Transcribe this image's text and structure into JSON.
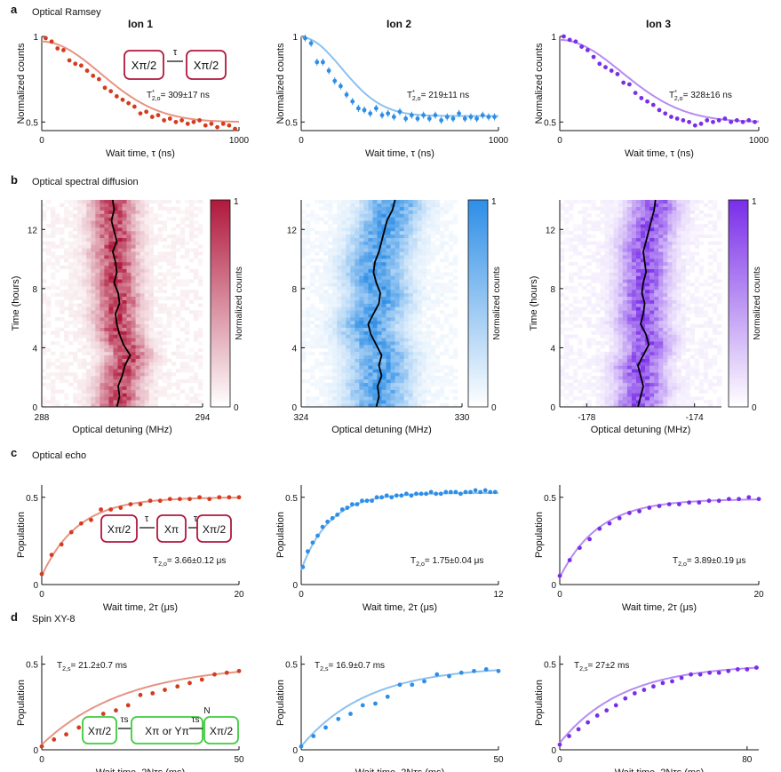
{
  "figure": {
    "colors": {
      "ion1": "#d43c1e",
      "ion2": "#2e8ee6",
      "ion3": "#7a2ee8",
      "green": "#3ecb3e",
      "crimson": "#b0183c"
    },
    "rows": [
      {
        "letter": "a",
        "title": "Optical Ramsey"
      },
      {
        "letter": "b",
        "title": "Optical spectral diffusion"
      },
      {
        "letter": "c",
        "title": "Optical echo"
      },
      {
        "letter": "d",
        "title": "Spin XY-8"
      }
    ],
    "ion_labels": [
      "Ion 1",
      "Ion 2",
      "Ion 3"
    ],
    "colorbar_label": "Normalized counts",
    "colorbar_ticks": [
      "1",
      "0"
    ],
    "insets": {
      "ramsey": {
        "pulse1": "Xπ/2",
        "pulse2": "Xπ/2",
        "delay": "τ"
      },
      "echo": {
        "pulse1": "Xπ/2",
        "pulse2": "Xπ",
        "pulse3": "Xπ/2",
        "delay1": "τ",
        "delay2": "τ"
      },
      "xy8": {
        "pulse1": "Xπ/2",
        "pulse2": "Xπ or Yπ",
        "pulse3": "Xπ/2",
        "delay1": "τs",
        "delay2": "τs",
        "repeat": "N"
      }
    }
  },
  "chart_data": [
    {
      "id": "a1",
      "type": "scatter",
      "row": "a",
      "ion": "Ion 1",
      "color": "#d43c1e",
      "xlabel": "Wait time, τ (ns)",
      "ylabel": "Normalized counts",
      "xlim": [
        0,
        1000
      ],
      "ylim": [
        0.45,
        1.0
      ],
      "xticks": [
        0,
        1000
      ],
      "yticks": [
        0.5,
        1
      ],
      "annotation": "T*2,o= 309±17 ns",
      "x": [
        20,
        50,
        80,
        110,
        140,
        170,
        200,
        230,
        260,
        290,
        320,
        350,
        380,
        410,
        440,
        470,
        500,
        530,
        560,
        590,
        620,
        650,
        680,
        710,
        740,
        770,
        800,
        830,
        860,
        890,
        920,
        950,
        980
      ],
      "y": [
        0.99,
        0.97,
        0.93,
        0.92,
        0.86,
        0.84,
        0.83,
        0.8,
        0.77,
        0.75,
        0.7,
        0.68,
        0.65,
        0.63,
        0.61,
        0.59,
        0.55,
        0.56,
        0.53,
        0.54,
        0.51,
        0.52,
        0.5,
        0.51,
        0.49,
        0.5,
        0.51,
        0.48,
        0.49,
        0.47,
        0.49,
        0.48,
        0.46
      ],
      "fit": {
        "A": 0.47,
        "B": 0.5,
        "T": 420
      }
    },
    {
      "id": "a2",
      "type": "scatter",
      "row": "a",
      "ion": "Ion 2",
      "color": "#2e8ee6",
      "xlabel": "Wait time, τ (ns)",
      "ylabel": "Normalized counts",
      "xlim": [
        0,
        1000
      ],
      "ylim": [
        0.45,
        1.0
      ],
      "xticks": [
        0,
        1000
      ],
      "yticks": [
        0.5,
        1
      ],
      "annotation": "T*2,o= 219±11 ns",
      "x": [
        20,
        50,
        80,
        110,
        140,
        170,
        200,
        230,
        260,
        290,
        320,
        350,
        380,
        410,
        440,
        470,
        500,
        530,
        560,
        590,
        620,
        650,
        680,
        710,
        740,
        770,
        800,
        830,
        860,
        890,
        920,
        950,
        980
      ],
      "y": [
        0.99,
        0.96,
        0.85,
        0.85,
        0.8,
        0.74,
        0.71,
        0.66,
        0.62,
        0.58,
        0.57,
        0.55,
        0.58,
        0.54,
        0.55,
        0.53,
        0.56,
        0.52,
        0.54,
        0.52,
        0.54,
        0.52,
        0.54,
        0.51,
        0.53,
        0.52,
        0.55,
        0.52,
        0.53,
        0.52,
        0.54,
        0.53,
        0.53
      ],
      "fit": {
        "A": 0.46,
        "B": 0.535,
        "T": 290
      }
    },
    {
      "id": "a3",
      "type": "scatter",
      "row": "a",
      "ion": "Ion 3",
      "color": "#7a2ee8",
      "xlabel": "Wait time, τ (ns)",
      "ylabel": "Normalized counts",
      "xlim": [
        0,
        1000
      ],
      "ylim": [
        0.45,
        1.0
      ],
      "xticks": [
        0,
        1000
      ],
      "yticks": [
        0.5,
        1
      ],
      "annotation": "T*2,o= 328±16 ns",
      "x": [
        20,
        50,
        80,
        110,
        140,
        170,
        200,
        230,
        260,
        290,
        320,
        350,
        380,
        410,
        440,
        470,
        500,
        530,
        560,
        590,
        620,
        650,
        680,
        710,
        740,
        770,
        800,
        830,
        860,
        890,
        920,
        950,
        980
      ],
      "y": [
        1.0,
        0.98,
        0.97,
        0.94,
        0.92,
        0.88,
        0.84,
        0.82,
        0.8,
        0.78,
        0.73,
        0.72,
        0.67,
        0.64,
        0.62,
        0.6,
        0.57,
        0.55,
        0.53,
        0.52,
        0.51,
        0.5,
        0.48,
        0.49,
        0.51,
        0.5,
        0.51,
        0.52,
        0.5,
        0.51,
        0.5,
        0.51,
        0.5
      ],
      "fit": {
        "A": 0.48,
        "B": 0.5,
        "T": 440
      }
    },
    {
      "id": "b1",
      "type": "heatmap",
      "row": "b",
      "ion": "Ion 1",
      "color": "#b0183c",
      "xlabel": "Optical detuning (MHz)",
      "ylabel": "Time (hours)",
      "xlim": [
        288,
        294
      ],
      "ylim": [
        0,
        14
      ],
      "xticks": [
        288,
        294
      ],
      "yticks": [
        0,
        4,
        8,
        12
      ],
      "center": 290.8,
      "width": 0.55,
      "cbar_ticks": [
        "1",
        "0"
      ],
      "drift_t": [
        0,
        0.7,
        1.4,
        2.1,
        2.8,
        3.5,
        4.2,
        4.9,
        5.6,
        6.3,
        7.0,
        7.7,
        8.4,
        9.1,
        9.8,
        10.5,
        11.2,
        11.9,
        12.6,
        13.3,
        14.0
      ],
      "drift_x": [
        290.8,
        290.9,
        290.85,
        291.0,
        291.1,
        291.3,
        291.05,
        290.9,
        290.8,
        290.75,
        290.9,
        290.85,
        290.7,
        290.8,
        290.75,
        290.65,
        290.8,
        290.7,
        290.6,
        290.7,
        290.65
      ]
    },
    {
      "id": "b2",
      "type": "heatmap",
      "row": "b",
      "ion": "Ion 2",
      "color": "#2e8ee6",
      "xlabel": "Optical detuning (MHz)",
      "ylabel": "",
      "xlim": [
        324,
        330
      ],
      "ylim": [
        0,
        14
      ],
      "xticks": [
        324,
        330
      ],
      "yticks": [
        0,
        4,
        8,
        12
      ],
      "center": 326.9,
      "width": 0.75,
      "cbar_ticks": [
        "1",
        "0"
      ],
      "drift_t": [
        0,
        0.7,
        1.4,
        2.1,
        2.8,
        3.5,
        4.2,
        4.9,
        5.6,
        6.3,
        7.0,
        7.7,
        8.4,
        9.1,
        9.8,
        10.5,
        11.2,
        11.9,
        12.6,
        13.3,
        14.0
      ],
      "drift_x": [
        326.8,
        326.9,
        326.85,
        327.0,
        326.9,
        327.0,
        326.8,
        326.6,
        326.5,
        326.7,
        326.9,
        326.95,
        326.8,
        326.7,
        326.75,
        326.9,
        327.0,
        327.1,
        327.2,
        327.4,
        327.5
      ]
    },
    {
      "id": "b3",
      "type": "heatmap",
      "row": "b",
      "ion": "Ion 3",
      "color": "#7a2ee8",
      "xlabel": "Optical detuning (MHz)",
      "ylabel": "Time (hours)",
      "xlim": [
        -179,
        -173
      ],
      "ylim": [
        0,
        14
      ],
      "xticks": [
        -178,
        -174
      ],
      "yticks": [
        0,
        4,
        8,
        12
      ],
      "center": -175.85,
      "width": 0.6,
      "cbar_ticks": [
        "1",
        "0"
      ],
      "drift_t": [
        0,
        0.7,
        1.4,
        2.1,
        2.8,
        3.5,
        4.2,
        4.9,
        5.6,
        6.3,
        7.0,
        7.7,
        8.4,
        9.1,
        9.8,
        10.5,
        11.2,
        11.9,
        12.6,
        13.3,
        14.0
      ],
      "drift_x": [
        -176.1,
        -176.0,
        -175.9,
        -176.0,
        -176.1,
        -175.9,
        -175.7,
        -175.8,
        -176.0,
        -175.9,
        -175.85,
        -175.95,
        -175.9,
        -175.8,
        -175.85,
        -175.9,
        -175.8,
        -175.7,
        -175.6,
        -175.5,
        -175.45
      ]
    },
    {
      "id": "c1",
      "type": "scatter",
      "row": "c",
      "ion": "Ion 1",
      "color": "#d43c1e",
      "xlabel": "Wait time, 2τ (μs)",
      "ylabel": "Population",
      "xlim": [
        0,
        20
      ],
      "ylim": [
        0,
        0.57
      ],
      "xticks": [
        0,
        20
      ],
      "yticks": [
        0,
        0.5
      ],
      "annotation": "T2,o= 3.66±0.12 μs",
      "x": [
        0,
        1,
        2,
        3,
        4,
        5,
        6,
        7,
        8,
        9,
        10,
        11,
        12,
        13,
        14,
        15,
        16,
        17,
        18,
        19,
        20
      ],
      "y": [
        0.06,
        0.17,
        0.23,
        0.3,
        0.35,
        0.37,
        0.43,
        0.43,
        0.44,
        0.46,
        0.46,
        0.48,
        0.48,
        0.49,
        0.49,
        0.49,
        0.5,
        0.49,
        0.5,
        0.5,
        0.5
      ],
      "fit": {
        "A": 0.45,
        "B": 0.5,
        "T": 3.66
      }
    },
    {
      "id": "c2",
      "type": "scatter",
      "row": "c",
      "ion": "Ion 2",
      "color": "#2e8ee6",
      "xlabel": "Wait time, 2τ (μs)",
      "ylabel": "Population",
      "xlim": [
        0,
        12
      ],
      "ylim": [
        0,
        0.57
      ],
      "xticks": [
        0,
        12
      ],
      "yticks": [
        0,
        0.5
      ],
      "annotation": "T2,o= 1.75±0.04 μs",
      "x": [
        0.1,
        0.4,
        0.7,
        1.0,
        1.3,
        1.6,
        1.9,
        2.2,
        2.5,
        2.8,
        3.1,
        3.4,
        3.7,
        4.0,
        4.3,
        4.6,
        4.9,
        5.2,
        5.5,
        5.8,
        6.1,
        6.4,
        6.7,
        7.0,
        7.3,
        7.6,
        7.9,
        8.2,
        8.5,
        8.8,
        9.1,
        9.4,
        9.7,
        10.0,
        10.3,
        10.6,
        10.9,
        11.2,
        11.5,
        11.8
      ],
      "y": [
        0.1,
        0.19,
        0.24,
        0.28,
        0.33,
        0.36,
        0.38,
        0.4,
        0.43,
        0.44,
        0.46,
        0.46,
        0.48,
        0.48,
        0.48,
        0.5,
        0.5,
        0.51,
        0.5,
        0.51,
        0.51,
        0.52,
        0.51,
        0.52,
        0.52,
        0.52,
        0.53,
        0.52,
        0.52,
        0.53,
        0.53,
        0.53,
        0.52,
        0.53,
        0.53,
        0.54,
        0.53,
        0.54,
        0.53,
        0.53
      ],
      "fit": {
        "A": 0.44,
        "B": 0.525,
        "T": 1.75
      }
    },
    {
      "id": "c3",
      "type": "scatter",
      "row": "c",
      "ion": "Ion 3",
      "color": "#7a2ee8",
      "xlabel": "Wait time, 2τ (μs)",
      "ylabel": "Population",
      "xlim": [
        0,
        20
      ],
      "ylim": [
        0,
        0.57
      ],
      "xticks": [
        0,
        20
      ],
      "yticks": [
        0,
        0.5
      ],
      "annotation": "T2,o= 3.89±0.19 μs",
      "x": [
        0,
        1,
        2,
        3,
        4,
        5,
        6,
        7,
        8,
        9,
        10,
        11,
        12,
        13,
        14,
        15,
        16,
        17,
        18,
        19,
        20
      ],
      "y": [
        0.05,
        0.14,
        0.21,
        0.26,
        0.32,
        0.35,
        0.38,
        0.41,
        0.42,
        0.44,
        0.45,
        0.46,
        0.46,
        0.47,
        0.47,
        0.48,
        0.48,
        0.49,
        0.49,
        0.5,
        0.49
      ],
      "fit": {
        "A": 0.45,
        "B": 0.49,
        "T": 3.89
      }
    },
    {
      "id": "d1",
      "type": "scatter",
      "row": "d",
      "ion": "Ion 1",
      "color": "#d43c1e",
      "xlabel": "Wait time, 2Nτs (ms)",
      "ylabel": "Population",
      "xlim": [
        0,
        50
      ],
      "ylim": [
        0,
        0.55
      ],
      "xticks": [
        0,
        50
      ],
      "yticks": [
        0,
        0.5
      ],
      "annotation": "T2,s= 21.2±0.7 ms",
      "x": [
        0,
        3.1,
        6.2,
        9.4,
        12.5,
        15.6,
        18.8,
        21.9,
        25,
        28.1,
        31.2,
        34.4,
        37.5,
        40.6,
        43.8,
        46.9,
        50
      ],
      "y": [
        0.02,
        0.06,
        0.09,
        0.13,
        0.16,
        0.21,
        0.23,
        0.26,
        0.32,
        0.33,
        0.35,
        0.37,
        0.39,
        0.41,
        0.44,
        0.45,
        0.46
      ],
      "fit": {
        "A": 0.47,
        "B": 0.5,
        "T": 21.2
      }
    },
    {
      "id": "d2",
      "type": "scatter",
      "row": "d",
      "ion": "Ion 2",
      "color": "#2e8ee6",
      "xlabel": "Wait time, 2Nτs (ms)",
      "ylabel": "Population",
      "xlim": [
        0,
        50
      ],
      "ylim": [
        0,
        0.55
      ],
      "xticks": [
        0,
        50
      ],
      "yticks": [
        0,
        0.5
      ],
      "annotation": "T2,s= 16.9±0.7 ms",
      "x": [
        0,
        3.1,
        6.2,
        9.4,
        12.5,
        15.6,
        18.8,
        21.9,
        25,
        28.1,
        31.2,
        34.4,
        37.5,
        40.6,
        43.8,
        46.9,
        50
      ],
      "y": [
        0.02,
        0.08,
        0.13,
        0.18,
        0.21,
        0.26,
        0.27,
        0.31,
        0.38,
        0.38,
        0.4,
        0.44,
        0.43,
        0.45,
        0.46,
        0.47,
        0.46
      ],
      "fit": {
        "A": 0.47,
        "B": 0.49,
        "T": 16.9
      }
    },
    {
      "id": "d3",
      "type": "scatter",
      "row": "d",
      "ion": "Ion 3",
      "color": "#7a2ee8",
      "xlabel": "Wait time, 2Nτs (ms)",
      "ylabel": "Population",
      "xlim": [
        0,
        85
      ],
      "ylim": [
        0,
        0.55
      ],
      "xticks": [
        0,
        80
      ],
      "yticks": [
        0,
        0.5
      ],
      "annotation": "T2,s= 27±2 ms",
      "x": [
        0,
        4,
        8,
        12,
        16,
        20,
        24,
        28,
        32,
        36,
        40,
        44,
        48,
        52,
        56,
        60,
        64,
        68,
        72,
        76,
        80,
        84
      ],
      "y": [
        0.03,
        0.08,
        0.12,
        0.16,
        0.2,
        0.23,
        0.26,
        0.3,
        0.33,
        0.35,
        0.37,
        0.39,
        0.4,
        0.42,
        0.44,
        0.44,
        0.45,
        0.45,
        0.46,
        0.47,
        0.47,
        0.48
      ],
      "fit": {
        "A": 0.46,
        "B": 0.5,
        "T": 27
      }
    }
  ]
}
